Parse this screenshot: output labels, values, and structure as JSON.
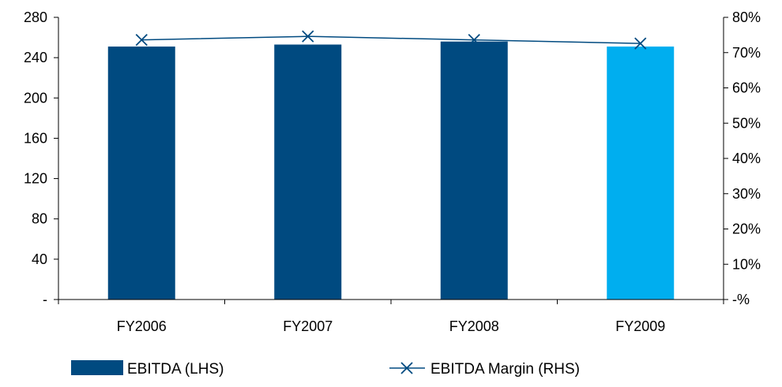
{
  "chart_data": {
    "type": "bar",
    "categories": [
      "FY2006",
      "FY2007",
      "FY2008",
      "FY2009"
    ],
    "series": [
      {
        "name": "EBITDA (LHS)",
        "kind": "bar",
        "axis": "left",
        "values": [
          251,
          253,
          256,
          251
        ],
        "colors": [
          "#004A80",
          "#004A80",
          "#004A80",
          "#00AEEF"
        ]
      },
      {
        "name": "EBITDA Margin (RHS)",
        "kind": "line",
        "axis": "right",
        "marker": "x",
        "values": [
          73.6,
          74.6,
          73.6,
          72.6
        ],
        "color": "#004A80"
      }
    ],
    "y_left": {
      "ylim": [
        0,
        280
      ],
      "ticks": [
        0,
        40,
        80,
        120,
        160,
        200,
        240,
        280
      ],
      "tick_labels": [
        "-",
        "40",
        "80",
        "120",
        "160",
        "200",
        "240",
        "280"
      ]
    },
    "y_right": {
      "ylim": [
        0,
        80
      ],
      "ticks": [
        0,
        10,
        20,
        30,
        40,
        50,
        60,
        70,
        80
      ],
      "tick_labels": [
        "-%",
        "10%",
        "20%",
        "30%",
        "40%",
        "50%",
        "60%",
        "70%",
        "80%"
      ]
    },
    "grid": false,
    "legend_position": "bottom"
  }
}
